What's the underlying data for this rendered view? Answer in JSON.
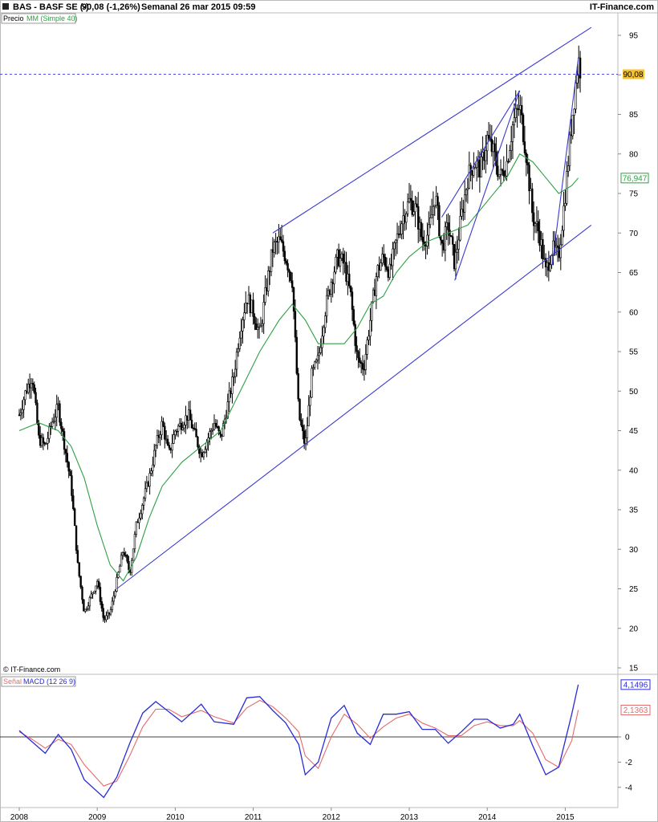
{
  "header": {
    "ticker": "BAS - BASF SE (-)",
    "last_change": "90,08 (-1,26%)",
    "period_date": "Semanal  26 mar 2015 09:59",
    "brand": "IT-Finance.com"
  },
  "legend": {
    "price_label": "Precio",
    "ma_label": "MM (Simple 40)",
    "signal_label": "Señal",
    "macd_label": "MACD (12 26 9)"
  },
  "copyright": "© IT-Finance.com",
  "colors": {
    "price": "#000000",
    "ma": "#2ea043",
    "trendline": "#3a3ad0",
    "macd": "#2b2bd8",
    "signal": "#e36b6b",
    "last_price_badge": "#f2c12e",
    "grid_axis": "#cfcfcf"
  },
  "chart_data": [
    {
      "type": "candlestick",
      "title": "BAS - BASF SE (-)",
      "frequency": "weekly",
      "x_labels": [
        "2008",
        "2009",
        "2010",
        "2011",
        "2012",
        "2013",
        "2014",
        "2015"
      ],
      "y_ticks": [
        "15",
        "20",
        "25",
        "30",
        "35",
        "40",
        "45",
        "50",
        "55",
        "60",
        "65",
        "70",
        "75",
        "80",
        "85",
        "90",
        "95"
      ],
      "ylim": [
        15,
        95
      ],
      "last_price": "90,08",
      "ma_last": "76,947",
      "price_path": [
        [
          "2008-01",
          47
        ],
        [
          "2008-02",
          50
        ],
        [
          "2008-03",
          52
        ],
        [
          "2008-04",
          44
        ],
        [
          "2008-05",
          43
        ],
        [
          "2008-06",
          46
        ],
        [
          "2008-07",
          48
        ],
        [
          "2008-08",
          43
        ],
        [
          "2008-09",
          38
        ],
        [
          "2008-10",
          28
        ],
        [
          "2008-11",
          22
        ],
        [
          "2008-12",
          24
        ],
        [
          "2009-01",
          26
        ],
        [
          "2009-02",
          21
        ],
        [
          "2009-03",
          22
        ],
        [
          "2009-04",
          26
        ],
        [
          "2009-05",
          30
        ],
        [
          "2009-06",
          27
        ],
        [
          "2009-07",
          33
        ],
        [
          "2009-08",
          36
        ],
        [
          "2009-09",
          39
        ],
        [
          "2009-10",
          43
        ],
        [
          "2009-11",
          46
        ],
        [
          "2009-12",
          42
        ],
        [
          "2010-01",
          45
        ],
        [
          "2010-03",
          47
        ],
        [
          "2010-05",
          42
        ],
        [
          "2010-07",
          46
        ],
        [
          "2010-08",
          44
        ],
        [
          "2010-10",
          52
        ],
        [
          "2010-11",
          58
        ],
        [
          "2010-12",
          62
        ],
        [
          "2011-01",
          60
        ],
        [
          "2011-02",
          57
        ],
        [
          "2011-03",
          63
        ],
        [
          "2011-04",
          68
        ],
        [
          "2011-05",
          69
        ],
        [
          "2011-06",
          67
        ],
        [
          "2011-07",
          64
        ],
        [
          "2011-08",
          47
        ],
        [
          "2011-09",
          43
        ],
        [
          "2011-10",
          52
        ],
        [
          "2011-11",
          54
        ],
        [
          "2011-12",
          60
        ],
        [
          "2012-01",
          64
        ],
        [
          "2012-02",
          67
        ],
        [
          "2012-03",
          66
        ],
        [
          "2012-04",
          62
        ],
        [
          "2012-05",
          54
        ],
        [
          "2012-06",
          53
        ],
        [
          "2012-07",
          59
        ],
        [
          "2012-08",
          65
        ],
        [
          "2012-09",
          67
        ],
        [
          "2012-10",
          65
        ],
        [
          "2012-11",
          69
        ],
        [
          "2012-12",
          72
        ],
        [
          "2013-01",
          74
        ],
        [
          "2013-02",
          73
        ],
        [
          "2013-03",
          69
        ],
        [
          "2013-04",
          70
        ],
        [
          "2013-05",
          75
        ],
        [
          "2013-06",
          68
        ],
        [
          "2013-07",
          71
        ],
        [
          "2013-08",
          66
        ],
        [
          "2013-09",
          72
        ],
        [
          "2013-10",
          77
        ],
        [
          "2013-11",
          79
        ],
        [
          "2013-12",
          78
        ],
        [
          "2014-01",
          82
        ],
        [
          "2014-02",
          80
        ],
        [
          "2014-03",
          77
        ],
        [
          "2014-04",
          79
        ],
        [
          "2014-05",
          84
        ],
        [
          "2014-06",
          86
        ],
        [
          "2014-07",
          80
        ],
        [
          "2014-08",
          72
        ],
        [
          "2014-09",
          70
        ],
        [
          "2014-10",
          65
        ],
        [
          "2014-11",
          68
        ],
        [
          "2014-12",
          67
        ],
        [
          "2015-01",
          75
        ],
        [
          "2015-02",
          84
        ],
        [
          "2015-03",
          92
        ],
        [
          "2015-03b",
          90.08
        ]
      ],
      "ma_path": [
        [
          "2008-01",
          45
        ],
        [
          "2008-04",
          46
        ],
        [
          "2008-07",
          45
        ],
        [
          "2008-09",
          43
        ],
        [
          "2008-11",
          39
        ],
        [
          "2009-01",
          33
        ],
        [
          "2009-03",
          28
        ],
        [
          "2009-05",
          26
        ],
        [
          "2009-07",
          29
        ],
        [
          "2009-09",
          34
        ],
        [
          "2009-11",
          38
        ],
        [
          "2010-02",
          41
        ],
        [
          "2010-05",
          43
        ],
        [
          "2010-08",
          45
        ],
        [
          "2010-11",
          50
        ],
        [
          "2011-02",
          55
        ],
        [
          "2011-05",
          59
        ],
        [
          "2011-07",
          61
        ],
        [
          "2011-09",
          59
        ],
        [
          "2011-11",
          56
        ],
        [
          "2012-01",
          56
        ],
        [
          "2012-03",
          56
        ],
        [
          "2012-05",
          58
        ],
        [
          "2012-07",
          61
        ],
        [
          "2012-09",
          62
        ],
        [
          "2012-11",
          65
        ],
        [
          "2013-01",
          67
        ],
        [
          "2013-04",
          69
        ],
        [
          "2013-07",
          70
        ],
        [
          "2013-10",
          71
        ],
        [
          "2014-01",
          74
        ],
        [
          "2014-04",
          77
        ],
        [
          "2014-06",
          80
        ],
        [
          "2014-08",
          79
        ],
        [
          "2014-10",
          77
        ],
        [
          "2014-12",
          75
        ],
        [
          "2015-02",
          76
        ],
        [
          "2015-03",
          76.947
        ]
      ],
      "trendlines": [
        {
          "name": "upper-channel",
          "from": [
            "2011-04",
            70
          ],
          "to": [
            "2015-05",
            96
          ]
        },
        {
          "name": "lower-channel",
          "from": [
            "2009-04",
            25
          ],
          "to": [
            "2015-05",
            71
          ]
        },
        {
          "name": "rising-wedge-upper",
          "from": [
            "2013-06",
            72
          ],
          "to": [
            "2014-06",
            88
          ]
        },
        {
          "name": "rising-wedge-lower",
          "from": [
            "2013-08",
            64
          ],
          "to": [
            "2014-06",
            88
          ]
        },
        {
          "name": "fan-line",
          "from": [
            "2014-11",
            66
          ],
          "to": [
            "2015-03",
            92
          ]
        }
      ],
      "reference_line": {
        "value": 90.08,
        "style": "dashed"
      }
    },
    {
      "type": "line",
      "title": "MACD (12 26 9)",
      "series": [
        {
          "name": "MACD (12 26 9)",
          "last": "4,1496",
          "path": [
            [
              "2008-01",
              0.5
            ],
            [
              "2008-03",
              -0.4
            ],
            [
              "2008-05",
              -1.3
            ],
            [
              "2008-07",
              0.2
            ],
            [
              "2008-09",
              -1.0
            ],
            [
              "2008-11",
              -3.4
            ],
            [
              "2009-02",
              -4.8
            ],
            [
              "2009-04",
              -3.2
            ],
            [
              "2009-06",
              -0.5
            ],
            [
              "2009-08",
              1.9
            ],
            [
              "2009-10",
              2.8
            ],
            [
              "2009-12",
              2.0
            ],
            [
              "2010-02",
              1.2
            ],
            [
              "2010-05",
              2.6
            ],
            [
              "2010-07",
              1.2
            ],
            [
              "2010-10",
              1.0
            ],
            [
              "2010-12",
              3.1
            ],
            [
              "2011-02",
              3.2
            ],
            [
              "2011-04",
              2.1
            ],
            [
              "2011-06",
              1.1
            ],
            [
              "2011-08",
              -0.6
            ],
            [
              "2011-09",
              -3.0
            ],
            [
              "2011-11",
              -2.0
            ],
            [
              "2012-01",
              1.5
            ],
            [
              "2012-03",
              2.5
            ],
            [
              "2012-05",
              0.3
            ],
            [
              "2012-07",
              -0.6
            ],
            [
              "2012-09",
              1.8
            ],
            [
              "2012-11",
              1.8
            ],
            [
              "2013-01",
              2.0
            ],
            [
              "2013-03",
              0.6
            ],
            [
              "2013-05",
              0.6
            ],
            [
              "2013-07",
              -0.5
            ],
            [
              "2013-09",
              0.4
            ],
            [
              "2013-11",
              1.4
            ],
            [
              "2014-01",
              1.4
            ],
            [
              "2014-03",
              0.7
            ],
            [
              "2014-05",
              1.0
            ],
            [
              "2014-06",
              1.8
            ],
            [
              "2014-08",
              -0.7
            ],
            [
              "2014-10",
              -3.0
            ],
            [
              "2014-12",
              -2.4
            ],
            [
              "2015-02",
              1.8
            ],
            [
              "2015-03",
              4.1496
            ]
          ]
        },
        {
          "name": "Señal",
          "last": "2,1363",
          "path": [
            [
              "2008-01",
              0.4
            ],
            [
              "2008-03",
              -0.2
            ],
            [
              "2008-05",
              -0.9
            ],
            [
              "2008-07",
              -0.2
            ],
            [
              "2008-09",
              -0.6
            ],
            [
              "2008-11",
              -2.2
            ],
            [
              "2009-02",
              -3.9
            ],
            [
              "2009-04",
              -3.5
            ],
            [
              "2009-06",
              -1.5
            ],
            [
              "2009-08",
              0.8
            ],
            [
              "2009-10",
              2.2
            ],
            [
              "2009-12",
              2.2
            ],
            [
              "2010-02",
              1.6
            ],
            [
              "2010-05",
              2.1
            ],
            [
              "2010-07",
              1.6
            ],
            [
              "2010-10",
              1.1
            ],
            [
              "2010-12",
              2.3
            ],
            [
              "2011-02",
              2.9
            ],
            [
              "2011-04",
              2.4
            ],
            [
              "2011-06",
              1.5
            ],
            [
              "2011-08",
              0.4
            ],
            [
              "2011-09",
              -1.5
            ],
            [
              "2011-11",
              -2.5
            ],
            [
              "2012-01",
              0.0
            ],
            [
              "2012-03",
              1.8
            ],
            [
              "2012-05",
              1.0
            ],
            [
              "2012-07",
              -0.1
            ],
            [
              "2012-09",
              0.8
            ],
            [
              "2012-11",
              1.5
            ],
            [
              "2013-01",
              1.8
            ],
            [
              "2013-03",
              1.1
            ],
            [
              "2013-05",
              0.7
            ],
            [
              "2013-07",
              0.1
            ],
            [
              "2013-09",
              0.1
            ],
            [
              "2013-11",
              0.9
            ],
            [
              "2014-01",
              1.2
            ],
            [
              "2014-03",
              0.9
            ],
            [
              "2014-05",
              0.9
            ],
            [
              "2014-06",
              1.3
            ],
            [
              "2014-08",
              0.3
            ],
            [
              "2014-10",
              -1.8
            ],
            [
              "2014-12",
              -2.4
            ],
            [
              "2015-02",
              -0.3
            ],
            [
              "2015-03",
              2.1363
            ]
          ]
        }
      ],
      "y_ticks": [
        "-4",
        "-2",
        "0",
        "2",
        "4"
      ],
      "ylim": [
        -5,
        5
      ],
      "zero_line": true
    }
  ]
}
